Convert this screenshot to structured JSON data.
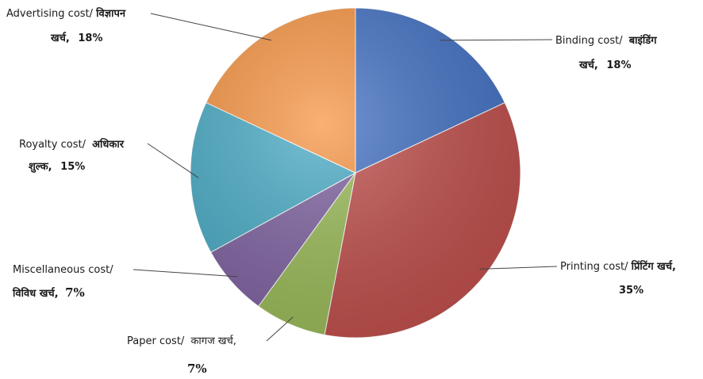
{
  "chart_data": {
    "type": "pie",
    "title": "",
    "slices": [
      {
        "label_en": "Binding cost/",
        "label_hi": "बाइंडिंग",
        "label_hi2": "खर्च,",
        "value": 18,
        "value_text": "18%",
        "color": "#4472C4"
      },
      {
        "label_en": "Printing cost/",
        "label_hi": "प्रिंटिंग खर्च,",
        "label_hi2": "",
        "value": 35,
        "value_text": "35%",
        "color": "#C0504D"
      },
      {
        "label_en": "Paper cost/",
        "label_hi": "कागज खर्च,",
        "label_hi2": "",
        "value": 7,
        "value_text": "7%",
        "color": "#9BBB59"
      },
      {
        "label_en": "Miscellaneous cost/",
        "label_hi": "विविध खर्च,",
        "label_hi2": "",
        "value": 7,
        "value_text": "7%",
        "color": "#8064A2"
      },
      {
        "label_en": "Royalty cost/",
        "label_hi": "अधिकार",
        "label_hi2": "शुल्क,",
        "value": 15,
        "value_text": "15%",
        "color": "#4BACC6"
      },
      {
        "label_en": "Advertising cost/",
        "label_hi": "विज्ञापन",
        "label_hi2": "खर्च,",
        "value": 18,
        "value_text": "18%",
        "color": "#F79646"
      }
    ]
  }
}
